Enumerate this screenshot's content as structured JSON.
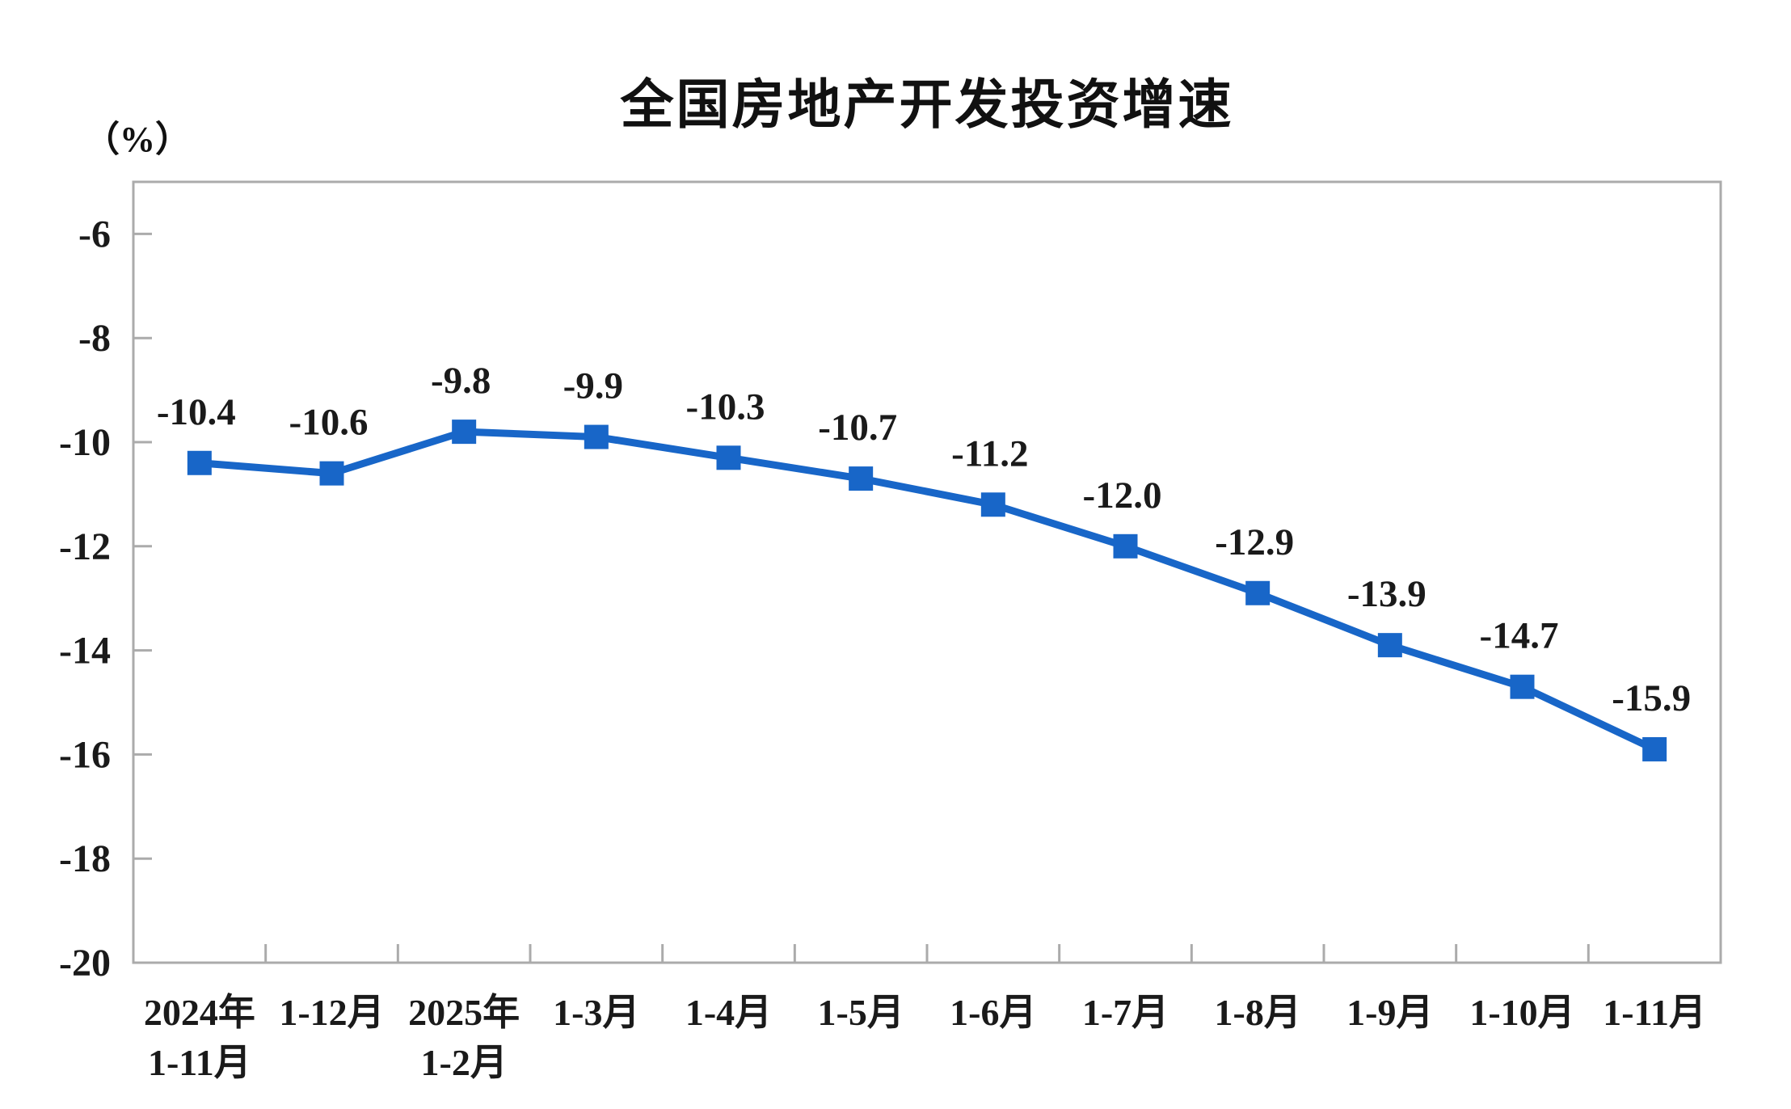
{
  "chart_data": {
    "type": "line",
    "title": "全国房地产开发投资增速",
    "unit_label": "（%）",
    "legend": "none",
    "grid": "off",
    "categories": [
      [
        "2024年",
        "1-11月"
      ],
      [
        "1-12月"
      ],
      [
        "2025年",
        "1-2月"
      ],
      [
        "1-3月"
      ],
      [
        "1-4月"
      ],
      [
        "1-5月"
      ],
      [
        "1-6月"
      ],
      [
        "1-7月"
      ],
      [
        "1-8月"
      ],
      [
        "1-9月"
      ],
      [
        "1-10月"
      ],
      [
        "1-11月"
      ]
    ],
    "values": [
      -10.4,
      -10.6,
      -9.8,
      -9.9,
      -10.3,
      -10.7,
      -11.2,
      -12.0,
      -12.9,
      -13.9,
      -14.7,
      -15.9
    ],
    "data_labels": [
      "-10.4",
      "-10.6",
      "-9.8",
      "-9.9",
      "-10.3",
      "-10.7",
      "-11.2",
      "-12.0",
      "-12.9",
      "-13.9",
      "-14.7",
      "-15.9"
    ],
    "y_axis": {
      "min": -20,
      "max": -5,
      "tick_step": 2,
      "tick_values": [
        -6,
        -8,
        -10,
        -12,
        -14,
        -16,
        -18,
        -20
      ],
      "tick_labels": [
        "-6",
        "-8",
        "-10",
        "-12",
        "-14",
        "-16",
        "-18",
        "-20"
      ]
    },
    "x_axis": {
      "tick_marks": "between-categories"
    },
    "colors": {
      "series_line": "#1866C8",
      "marker": "#1866C8",
      "axis_border": "#ABABAB",
      "text": "#1a1a1a"
    }
  }
}
